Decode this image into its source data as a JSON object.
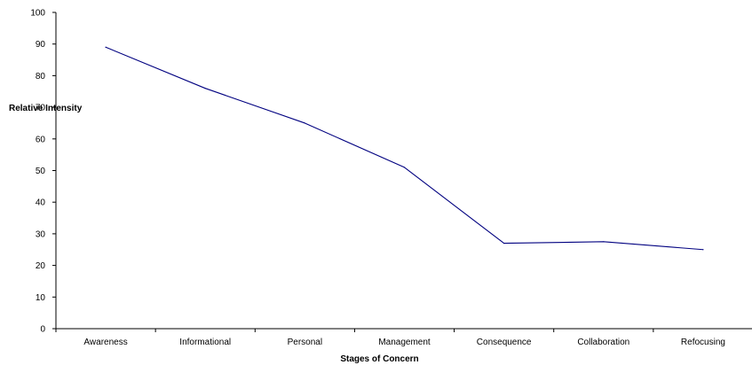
{
  "chart_data": {
    "type": "line",
    "title": "",
    "xlabel": "Stages of Concern",
    "ylabel": "Relative Intensity",
    "categories": [
      "Awareness",
      "Informational",
      "Personal",
      "Management",
      "Consequence",
      "Collaboration",
      "Refocusing"
    ],
    "series": [
      {
        "values": [
          89,
          76,
          65,
          51,
          27,
          27.5,
          25
        ],
        "color": "#000080"
      }
    ],
    "ylim": [
      0,
      100
    ],
    "yticks": [
      "0",
      "10",
      "20",
      "30",
      "40",
      "50",
      "60",
      "70",
      "80",
      "90",
      "100"
    ],
    "grid": false,
    "legend": "none"
  }
}
